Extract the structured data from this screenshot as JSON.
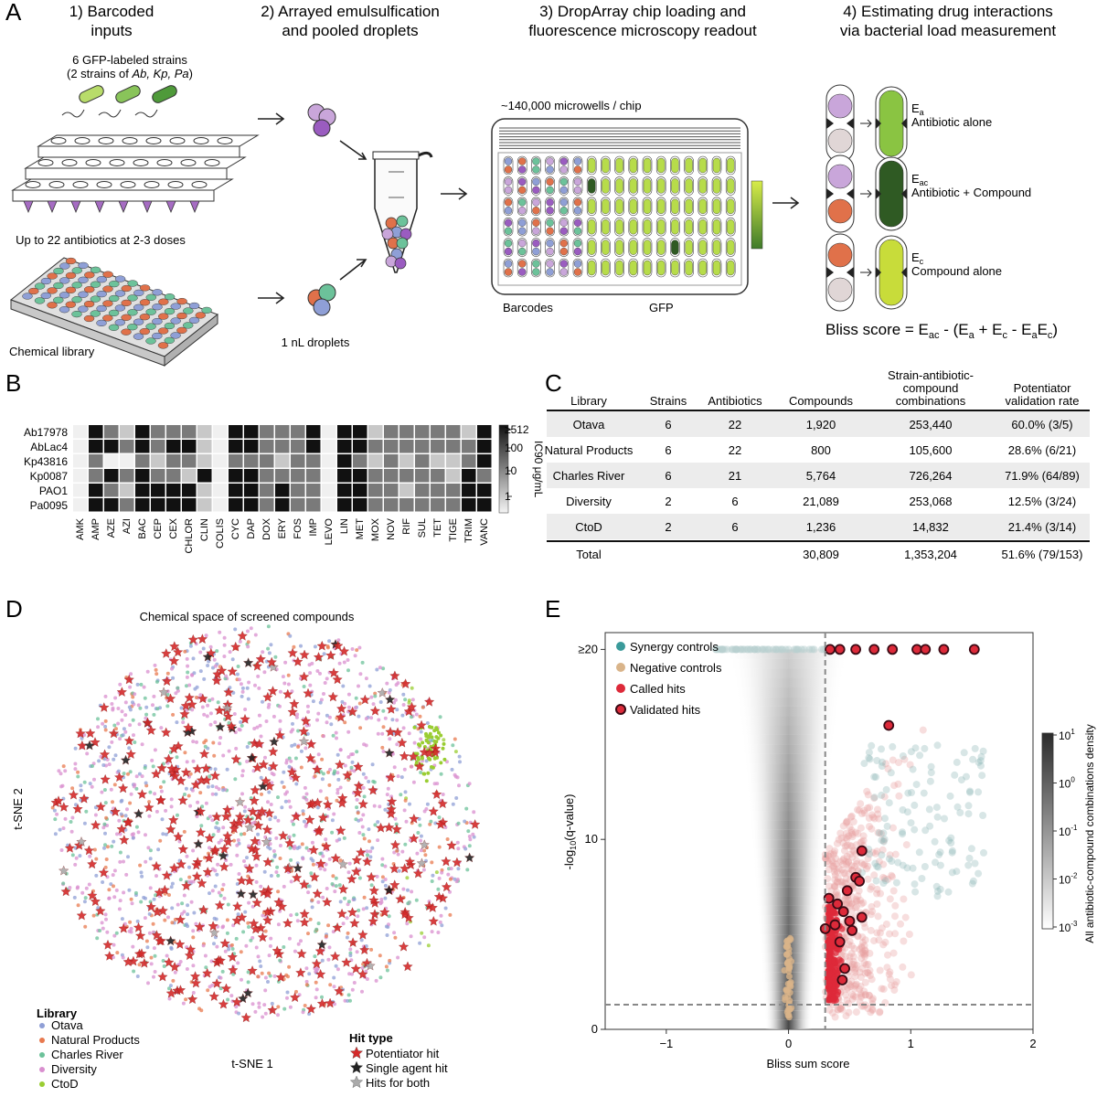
{
  "panel_letters": {
    "a": "A",
    "b": "B",
    "c": "C",
    "d": "D",
    "e": "E"
  },
  "panel_a": {
    "steps": [
      {
        "line1": "1) Barcoded",
        "line2": "inputs"
      },
      {
        "line1": "2) Arrayed emulsulfication",
        "line2": "and pooled droplets"
      },
      {
        "line1": "3) DropArray chip loading and",
        "line2": "fluorescence microscopy readout"
      },
      {
        "line1": "4) Estimating drug interactions",
        "line2": "via bacterial load measurement"
      }
    ],
    "strains_line1": "6 GFP-labeled strains",
    "strains_line2_pre": "(2 strains of ",
    "strains_line2_em": "Ab, Kp, Pa",
    "strains_line2_post": ")",
    "antibiotics_label": "Up to 22 antibiotics at 2-3 doses",
    "library_label": "Chemical library",
    "droplet_label": "1 nL droplets",
    "chip_label": "~140,000 microwells / chip",
    "barcodes_label": "Barcodes",
    "gfp_label": "GFP",
    "effects": [
      {
        "sym": "E",
        "sub": "a",
        "desc": "Antibiotic alone"
      },
      {
        "sym": "E",
        "sub": "ac",
        "desc": "Antibiotic + Compound"
      },
      {
        "sym": "E",
        "sub": "c",
        "desc": "Compound alone"
      }
    ],
    "bliss": {
      "lhs": "Bliss score = E",
      "s_ac": "ac",
      "mid1": " - (E",
      "s_a": "a",
      "mid2": " + E",
      "s_c": "c",
      "mid3": " - E",
      "s_a2": "a",
      "mid4": "E",
      "s_c2": "c",
      "end": ")"
    }
  },
  "panel_b": {
    "strains": [
      "Ab17978",
      "AbLac4",
      "Kp43816",
      "Kp0087",
      "PAO1",
      "Pa0095"
    ],
    "antibiotics": [
      "AMK",
      "AMP",
      "AZE",
      "AZI",
      "BAC",
      "CEP",
      "CEX",
      "CHLOR",
      "CLIN",
      "COLIS",
      "CYC",
      "DAP",
      "DOX",
      "ERY",
      "FOS",
      "IMP",
      "LEVO",
      "LIN",
      "MET",
      "MOX",
      "NOV",
      "RIF",
      "SUL",
      "TET",
      "TIGE",
      "TRIM",
      "VANC"
    ],
    "values": [
      [
        1,
        4,
        3,
        2,
        4,
        3,
        3,
        3,
        2,
        1,
        4,
        4,
        3,
        3,
        3,
        4,
        1,
        4,
        4,
        2,
        3,
        3,
        3,
        3,
        3,
        2,
        4
      ],
      [
        1,
        4,
        4,
        3,
        4,
        3,
        4,
        4,
        2,
        1,
        4,
        4,
        3,
        3,
        3,
        4,
        1,
        4,
        4,
        3,
        3,
        3,
        3,
        3,
        3,
        3,
        4
      ],
      [
        1,
        3,
        1,
        1,
        3,
        2,
        3,
        3,
        2,
        1,
        3,
        3,
        3,
        2,
        3,
        3,
        1,
        4,
        3,
        2,
        3,
        2,
        3,
        2,
        2,
        3,
        4
      ],
      [
        1,
        3,
        4,
        3,
        4,
        3,
        3,
        2,
        4,
        1,
        4,
        4,
        3,
        3,
        3,
        3,
        1,
        4,
        4,
        3,
        3,
        3,
        3,
        3,
        2,
        4,
        3
      ],
      [
        1,
        4,
        3,
        2,
        4,
        4,
        4,
        4,
        2,
        1,
        4,
        4,
        3,
        4,
        3,
        3,
        1,
        4,
        4,
        3,
        3,
        2,
        3,
        3,
        3,
        4,
        4
      ],
      [
        1,
        4,
        4,
        3,
        4,
        4,
        4,
        4,
        2,
        1,
        4,
        4,
        3,
        4,
        3,
        3,
        1,
        4,
        4,
        3,
        3,
        3,
        3,
        3,
        3,
        4,
        4
      ]
    ],
    "colorbar_ticks": [
      "≥512",
      "100",
      "10",
      "1"
    ],
    "colorbar_label": "IC90 μg/mL"
  },
  "panel_c": {
    "headers": [
      {
        "l1": "Library",
        "l2": "",
        "l3": ""
      },
      {
        "l1": "Strains",
        "l2": "",
        "l3": ""
      },
      {
        "l1": "Antibiotics",
        "l2": "",
        "l3": ""
      },
      {
        "l1": "Compounds",
        "l2": "",
        "l3": ""
      },
      {
        "l1": "Strain-antibiotic-",
        "l2": "compound",
        "l3": "combinations"
      },
      {
        "l1": "Potentiator",
        "l2": "validation rate",
        "l3": ""
      }
    ],
    "rows": [
      [
        "Otava",
        "6",
        "22",
        "1,920",
        "253,440",
        "60.0% (3/5)"
      ],
      [
        "Natural Products",
        "6",
        "22",
        "800",
        "105,600",
        "28.6% (6/21)"
      ],
      [
        "Charles River",
        "6",
        "21",
        "5,764",
        "726,264",
        "71.9% (64/89)"
      ],
      [
        "Diversity",
        "2",
        "6",
        "21,089",
        "253,068",
        "12.5% (3/24)"
      ],
      [
        "CtoD",
        "2",
        "6",
        "1,236",
        "14,832",
        "21.4% (3/14)"
      ]
    ],
    "total": [
      "Total",
      "",
      "",
      "30,809",
      "1,353,204",
      "51.6% (79/153)"
    ]
  },
  "panel_d": {
    "title": "Chemical space of screened compounds",
    "xlabel": "t-SNE 1",
    "ylabel": "t-SNE 2",
    "library_legend_title": "Library",
    "libraries": [
      {
        "name": "Otava",
        "color": "#8f9fd6"
      },
      {
        "name": "Natural Products",
        "color": "#e8794f"
      },
      {
        "name": "Charles River",
        "color": "#6cc29a"
      },
      {
        "name": "Diversity",
        "color": "#d98fcf"
      },
      {
        "name": "CtoD",
        "color": "#9acd32"
      }
    ],
    "hit_legend_title": "Hit type",
    "hits": [
      {
        "name": "Potentiator hit",
        "color": "#d42a2a"
      },
      {
        "name": "Single agent hit",
        "color": "#222222"
      },
      {
        "name": "Hits for both",
        "color": "#aaaaaa"
      }
    ]
  },
  "panel_e": {
    "xlabel": "Bliss sum score",
    "ylabel_pre": "-log",
    "ylabel_sub": "10",
    "ylabel_post": "(q-value)",
    "xticks": [
      "−1",
      "0",
      "1",
      "2"
    ],
    "yticks": [
      "0",
      "10",
      "≥20"
    ],
    "legend": [
      {
        "name": "Synergy controls",
        "color": "#3a9a9a"
      },
      {
        "name": "Negative controls",
        "color": "#d9b48a"
      },
      {
        "name": "Called hits",
        "color": "#dd2a3a"
      },
      {
        "name": "Validated hits",
        "color": "#dd2a3a"
      }
    ],
    "colorbar_label": "All antibiotic-compound combinations density",
    "colorbar_ticks": [
      {
        "base": "10",
        "exp": "1"
      },
      {
        "base": "10",
        "exp": "0"
      },
      {
        "base": "10",
        "exp": "-1"
      },
      {
        "base": "10",
        "exp": "-2"
      },
      {
        "base": "10",
        "exp": "-3"
      }
    ]
  },
  "chart_data": {
    "type": "heatmap",
    "rows": [
      "Ab17978",
      "AbLac4",
      "Kp43816",
      "Kp0087",
      "PAO1",
      "Pa0095"
    ],
    "columns": [
      "AMK",
      "AMP",
      "AZE",
      "AZI",
      "BAC",
      "CEP",
      "CEX",
      "CHLOR",
      "CLIN",
      "COLIS",
      "CYC",
      "DAP",
      "DOX",
      "ERY",
      "FOS",
      "IMP",
      "LEVO",
      "LIN",
      "MET",
      "MOX",
      "NOV",
      "RIF",
      "SUL",
      "TET",
      "TIGE",
      "TRIM",
      "VANC"
    ],
    "color_scale_label": "IC90 μg/mL",
    "color_scale_ticks": [
      "1",
      "10",
      "100",
      "≥512"
    ]
  }
}
